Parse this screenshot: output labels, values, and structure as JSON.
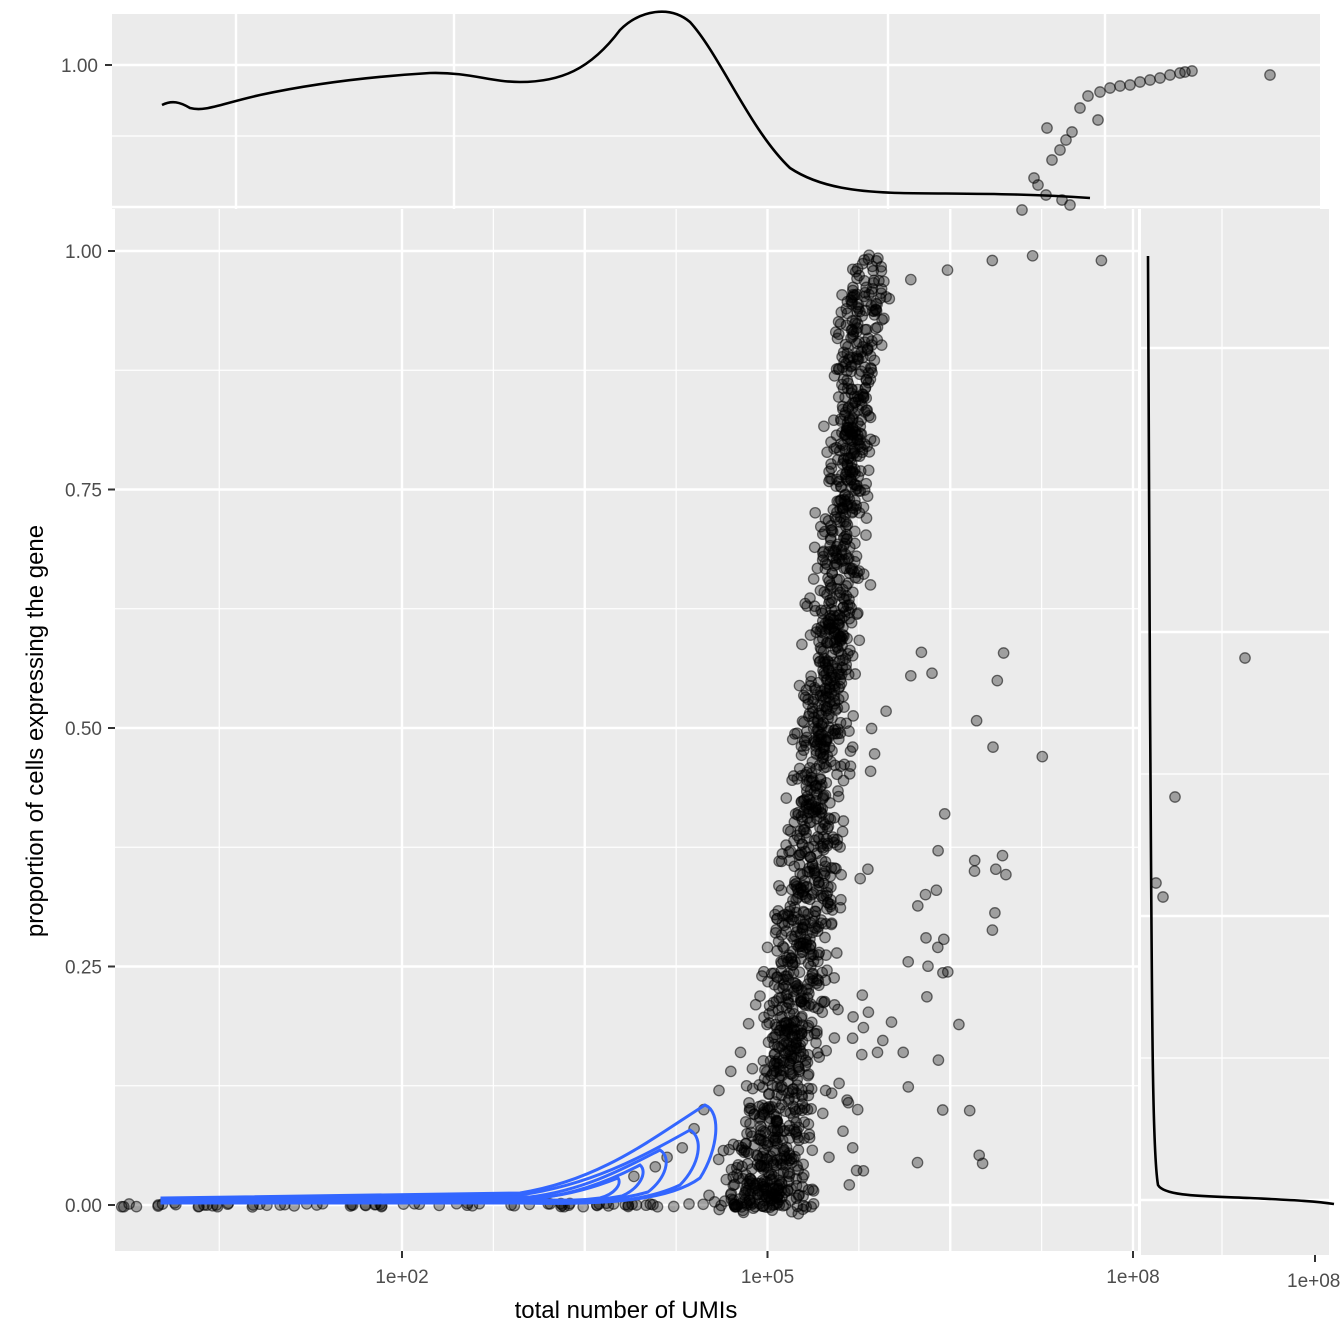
{
  "chart_data": {
    "type": "scatter",
    "title": "",
    "xlabel": "total number of UMIs",
    "ylabel": "proportion of cells expressing the gene",
    "x_scale": "log10",
    "xlim": [
      0.4,
      700000000
    ],
    "ylim": [
      -0.045,
      1.045
    ],
    "x_ticks": [
      {
        "value": 100,
        "label": "1e+02"
      },
      {
        "value": 100000,
        "label": "1e+05"
      },
      {
        "value": 100000000,
        "label": "1e+08"
      }
    ],
    "y_ticks": [
      {
        "value": 0.0,
        "label": "0.00"
      },
      {
        "value": 0.25,
        "label": "0.25"
      },
      {
        "value": 0.5,
        "label": "0.50"
      },
      {
        "value": 0.75,
        "label": "0.75"
      },
      {
        "value": 1.0,
        "label": "1.00"
      }
    ],
    "top_marginal": {
      "type": "density",
      "y_tick_label": "1.00"
    },
    "right_marginal": {
      "type": "density",
      "x_tick_label": "1e+08"
    },
    "colors": {
      "points": "#000000",
      "contour": "#3366FF",
      "density": "#000000",
      "panel": "#EBEBEB"
    },
    "grid": true,
    "legend": "none",
    "points": [
      [
        1,
        0
      ],
      [
        3,
        0
      ],
      [
        6,
        0
      ],
      [
        10,
        0
      ],
      [
        20,
        0
      ],
      [
        50,
        0
      ],
      [
        8000,
        0.03
      ],
      [
        12000,
        0.04
      ],
      [
        15000,
        0.05
      ],
      [
        20000,
        0.06
      ],
      [
        25000,
        0.08
      ],
      [
        30000,
        0.1
      ],
      [
        40000,
        0.12
      ],
      [
        50000,
        0.14
      ],
      [
        60000,
        0.16
      ],
      [
        70000,
        0.19
      ],
      [
        80000,
        0.21
      ],
      [
        90000,
        0.24
      ],
      [
        100000,
        0.27
      ],
      [
        120000,
        0.3
      ],
      [
        130000,
        0.33
      ],
      [
        150000,
        0.37
      ],
      [
        170000,
        0.41
      ],
      [
        190000,
        0.45
      ],
      [
        210000,
        0.49
      ],
      [
        240000,
        0.53
      ],
      [
        270000,
        0.57
      ],
      [
        300000,
        0.61
      ],
      [
        330000,
        0.65
      ],
      [
        370000,
        0.69
      ],
      [
        420000,
        0.73
      ],
      [
        470000,
        0.77
      ],
      [
        520000,
        0.81
      ],
      [
        600000,
        0.85
      ],
      [
        700000,
        0.89
      ],
      [
        800000,
        0.92
      ],
      [
        1000000,
        0.95
      ],
      [
        1500000,
        0.97
      ],
      [
        3000000,
        0.98
      ],
      [
        7000000,
        0.99
      ],
      [
        15000000,
        0.995
      ],
      [
        55000000,
        0.99
      ],
      [
        5000000,
        0.35
      ],
      [
        18000000,
        0.47
      ],
      [
        2500000,
        0.27
      ],
      [
        2000000,
        0.28
      ],
      [
        800000,
        0.16
      ],
      [
        1300000,
        0.16
      ],
      [
        600000,
        0.22
      ],
      [
        700000,
        0.65
      ],
      [
        650000,
        0.72
      ],
      [
        500000,
        0.48
      ],
      [
        480000,
        0.46
      ],
      [
        350000,
        0.38
      ],
      [
        400000,
        0.32
      ],
      [
        250000,
        0.17
      ],
      [
        300000,
        0.12
      ],
      [
        450000,
        0.11
      ],
      [
        550000,
        0.1
      ],
      [
        500000,
        0.06
      ],
      [
        320000,
        0.05
      ],
      [
        200000,
        0.07
      ],
      [
        150000,
        0.03
      ],
      [
        180000,
        0.01
      ],
      [
        120000,
        0.02
      ],
      [
        90000,
        0.04
      ]
    ]
  }
}
